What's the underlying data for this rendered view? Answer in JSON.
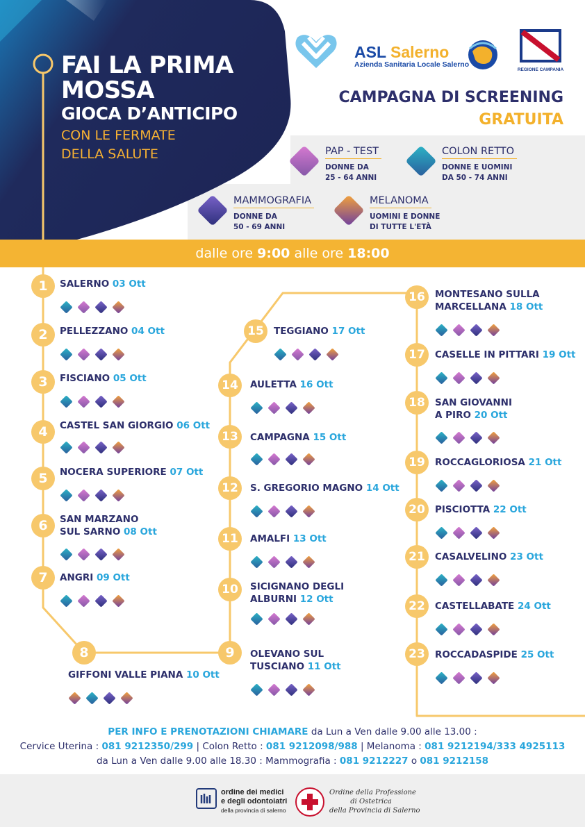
{
  "header": {
    "headline_line1": "FAI LA PRIMA",
    "headline_line2": "MOSSA",
    "headline_line3": "GIOCA D’ANTICIPO",
    "headline_line4": "CON LE FERMATE",
    "headline_line5": "DELLA SALUTE"
  },
  "logos": {
    "asl_name_part1": "ASL",
    "asl_name_part2": "Salerno",
    "asl_subtitle": "Azienda Sanitaria Locale Salerno",
    "region_label": "REGIONE CAMPANIA"
  },
  "campaign": {
    "title": "CAMPAGNA DI SCREENING",
    "subtitle": "GRATUITA"
  },
  "screenings": [
    {
      "name": "PAP - TEST",
      "desc1": "DONNE DA",
      "desc2": "25 - 64 ANNI",
      "gradient": [
        "#d77ad1",
        "#8457a7"
      ]
    },
    {
      "name": "COLON RETTO",
      "desc1": "DONNE E UOMINI",
      "desc2": "DA 50 - 74 ANNI",
      "gradient": [
        "#2bb3c6",
        "#2a5e9c"
      ]
    },
    {
      "name": "MAMMOGRAFIA",
      "desc1": "DONNE DA",
      "desc2": "50 - 69 ANNI",
      "gradient": [
        "#7a63c9",
        "#2d2f7b"
      ]
    },
    {
      "name": "MELANOMA",
      "desc1": "UOMINI E DONNE",
      "desc2": "DI TUTTE L'ETÀ",
      "gradient": [
        "#f4a33a",
        "#6e3f9f"
      ]
    }
  ],
  "hours": {
    "prefix": "dalle ore ",
    "start": "9:00",
    "middle": " alle ore ",
    "end": "18:00"
  },
  "stops": [
    {
      "num": "1",
      "line1": "SALERNO",
      "line2": "",
      "date": "03 Ott"
    },
    {
      "num": "2",
      "line1": "PELLEZZANO",
      "line2": "",
      "date": "04 Ott"
    },
    {
      "num": "3",
      "line1": "FISCIANO",
      "line2": "",
      "date": "05 Ott"
    },
    {
      "num": "4",
      "line1": "CASTEL SAN GIORGIO",
      "line2": "",
      "date": "06 Ott"
    },
    {
      "num": "5",
      "line1": "NOCERA SUPERIORE ",
      "line2": "",
      "date": "07 Ott"
    },
    {
      "num": "6",
      "line1": "SAN MARZANO",
      "line2": "SUL SARNO",
      "date": "08 Ott"
    },
    {
      "num": "7",
      "line1": "ANGRI",
      "line2": "",
      "date": "09 Ott"
    },
    {
      "num": "8",
      "line1": "GIFFONI VALLE PIANA",
      "line2": "",
      "date": "10 Ott"
    },
    {
      "num": "9",
      "line1": "OLEVANO SUL",
      "line2": "TUSCIANO",
      "date": "11 Ott"
    },
    {
      "num": "10",
      "line1": "SICIGNANO DEGLI",
      "line2": "ALBURNI",
      "date": "12 Ott"
    },
    {
      "num": "11",
      "line1": "AMALFI",
      "line2": "",
      "date": "13 Ott"
    },
    {
      "num": "12",
      "line1": "S. GREGORIO MAGNO",
      "line2": "",
      "date": "14 Ott"
    },
    {
      "num": "13",
      "line1": "CAMPAGNA",
      "line2": "",
      "date": "15 Ott"
    },
    {
      "num": "14",
      "line1": "AULETTA",
      "line2": "",
      "date": "16 Ott"
    },
    {
      "num": "15",
      "line1": "TEGGIANO",
      "line2": "",
      "date": "17 Ott"
    },
    {
      "num": "16",
      "line1": "MONTESANO SULLA",
      "line2": "MARCELLANA",
      "date": "18 Ott"
    },
    {
      "num": "17",
      "line1": "CASELLE IN PITTARI",
      "line2": "",
      "date": "19 Ott"
    },
    {
      "num": "18",
      "line1": "SAN GIOVANNI",
      "line2": "A PIRO",
      "date": "20 Ott"
    },
    {
      "num": "19",
      "line1": "ROCCAGLORIOSA",
      "line2": "",
      "date": "21 Ott"
    },
    {
      "num": "20",
      "line1": "PISCIOTTA",
      "line2": "",
      "date": "22 Ott"
    },
    {
      "num": "21",
      "line1": "CASALVELINO",
      "line2": "",
      "date": "23 Ott"
    },
    {
      "num": "22",
      "line1": "CASTELLABATE",
      "line2": "",
      "date": "24 Ott"
    },
    {
      "num": "23",
      "line1": "ROCCADASPIDE",
      "line2": "",
      "date": "25 Ott"
    }
  ],
  "info": {
    "heading": "PER INFO E PRENOTAZIONI CHIAMARE",
    "heading_tail": " da Lun a Ven dalle 9.00 alle 13.00 :",
    "cervice_label": "Cervice Uterina : ",
    "cervice_num": "081 9212350/299",
    "colon_label": " | Colon Retto : ",
    "colon_num": "081 9212098/988",
    "melanoma_label": " | Melanoma : ",
    "melanoma_num": "081 9212194/333 4925113",
    "line3_prefix": "da Lun a Ven dalle 9.00 alle 18.30 : Mammografia : ",
    "mammo_num1": "081 9212227",
    "mammo_or": " o ",
    "mammo_num2": "081 9212158"
  },
  "footer": {
    "omceo_line1": "ordine dei medici",
    "omceo_line2": "e degli odontoiatri",
    "omceo_line3": "della provincia di salerno",
    "ostetrica_line1": "Ordine della Professione",
    "ostetrica_line2": "di Ostetrica",
    "ostetrica_line3": "della Provincia di Salerno"
  },
  "colors": {
    "navy": "#1f2a5c",
    "accent_yellow": "#f4b433",
    "date_blue": "#29a6dc",
    "route": "#f7c86b"
  }
}
